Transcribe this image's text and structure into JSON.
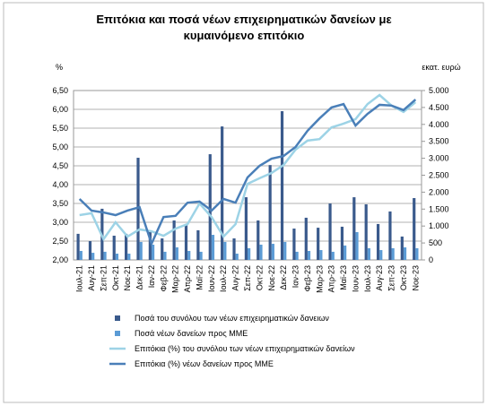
{
  "chart_data": {
    "type": "bar_line",
    "title_lines": [
      "Επιτόκια και ποσά νέων επιχειρηματικών δανείων με",
      "κυμαινόμενο επιτόκιο"
    ],
    "y_label": "%",
    "y2_label": "εκατ. ευρώ",
    "categories": [
      "Ιουλ-21",
      "Αυγ-21",
      "Σεπ-21",
      "Οκτ-21",
      "Νοε-21",
      "Δεκ-21",
      "Ιαν-22",
      "Φεβ-22",
      "Μαρ-22",
      "Απρ-22",
      "Μαϊ-22",
      "Ιουν-22",
      "Ιουλ-22",
      "Αυγ-22",
      "Σεπ-22",
      "Οκτ-22",
      "Νοε-22",
      "Δεκ-22",
      "Ιαν-23",
      "Φεβ-23",
      "Μαρ-23",
      "Απρ-23",
      "Μαϊ-23",
      "Ιουν-23",
      "Ιουλ-23",
      "Αυγ-23",
      "Σεπ-23",
      "Οκτ-23",
      "Νοε-23"
    ],
    "ylim": [
      2.0,
      6.5
    ],
    "yticks": [
      {
        "value": 2.0,
        "label": "2,00"
      },
      {
        "value": 2.5,
        "label": "2,50"
      },
      {
        "value": 3.0,
        "label": "3,00"
      },
      {
        "value": 3.5,
        "label": "3,50"
      },
      {
        "value": 4.0,
        "label": "4,00"
      },
      {
        "value": 4.5,
        "label": "4,50"
      },
      {
        "value": 5.0,
        "label": "5,00"
      },
      {
        "value": 5.5,
        "label": "5,50"
      },
      {
        "value": 6.0,
        "label": "6,00"
      },
      {
        "value": 6.5,
        "label": "6,50"
      }
    ],
    "y2lim": [
      0,
      5000
    ],
    "y2ticks": [
      0,
      500,
      {
        "value": 1000,
        "label": "1.000"
      },
      {
        "value": 1500,
        "label": "1.500"
      },
      {
        "value": 2000,
        "label": "2.000"
      },
      {
        "value": 2500,
        "label": "2.500"
      },
      {
        "value": 3000,
        "label": "3.000"
      },
      {
        "value": 3500,
        "label": "3.500"
      },
      {
        "value": 4000,
        "label": "4.000"
      },
      {
        "value": 4500,
        "label": "4.500"
      },
      {
        "value": 5000,
        "label": "5.000"
      }
    ],
    "series": [
      {
        "name": "Ποσά του συνόλου των νέων επιχειρηματικών δανειων",
        "kind": "bar",
        "axis": "y2",
        "color": "#3a5a8c",
        "values": [
          770,
          555,
          1510,
          715,
          770,
          3015,
          820,
          635,
          1165,
          1060,
          875,
          3120,
          3940,
          635,
          1850,
          1165,
          2800,
          4390,
          925,
          1245,
          950,
          1665,
          980,
          1850,
          1640,
          1060,
          1430,
          690,
          1825
        ]
      },
      {
        "name": "Ποσά νέων δανείων προς ΜΜΕ",
        "kind": "bar",
        "axis": "y2",
        "color": "#5b9bd5",
        "values": [
          265,
          210,
          240,
          185,
          185,
          530,
          450,
          240,
          370,
          265,
          240,
          740,
          530,
          185,
          345,
          450,
          475,
          530,
          240,
          265,
          290,
          240,
          425,
          820,
          345,
          290,
          345,
          370,
          345
        ]
      },
      {
        "name": "Επιτόκια (%) του συνόλου των νέων επιχειρηματικών δανείων",
        "kind": "line",
        "color": "#9dd3e6",
        "values": [
          3.19,
          3.24,
          2.55,
          3.0,
          2.62,
          2.81,
          2.76,
          2.64,
          2.83,
          2.95,
          3.5,
          3.14,
          2.62,
          2.95,
          4.02,
          4.17,
          4.31,
          4.52,
          4.93,
          5.17,
          5.21,
          5.52,
          5.62,
          5.74,
          6.14,
          6.38,
          6.1,
          5.93,
          6.19
        ]
      },
      {
        "name": "Επιτόκια (%) νέων δανείων προς ΜΜΕ",
        "kind": "line",
        "color": "#4a7fb8",
        "values": [
          3.62,
          3.31,
          3.26,
          3.19,
          3.31,
          3.4,
          2.43,
          3.14,
          3.17,
          3.52,
          3.55,
          3.31,
          3.62,
          3.52,
          4.19,
          4.5,
          4.69,
          4.76,
          5.0,
          5.43,
          5.76,
          6.05,
          6.14,
          5.57,
          5.88,
          6.12,
          6.1,
          5.98,
          6.26
        ]
      }
    ]
  }
}
